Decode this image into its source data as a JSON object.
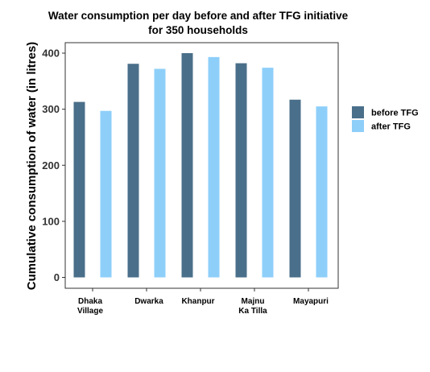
{
  "chart_data": {
    "type": "bar",
    "title_lines": [
      "Water consumption per day before and after TFG initiative",
      "for 350 households"
    ],
    "xlabel": "",
    "ylabel": "Cumulative consumption of water (in litres)",
    "ylim": [
      0,
      420
    ],
    "yticks": [
      0,
      100,
      200,
      300,
      400
    ],
    "grid": false,
    "legend_position": "right",
    "categories": [
      [
        "Dhaka",
        "Village"
      ],
      [
        "Dwarka"
      ],
      [
        "Khanpur"
      ],
      [
        "Majnu",
        "Ka Tilla"
      ],
      [
        "Mayapuri"
      ]
    ],
    "series": [
      {
        "name": "before TFG",
        "color": "#4a6f8a",
        "values": [
          313,
          381,
          400,
          382,
          317
        ]
      },
      {
        "name": "after TFG",
        "color": "#8ecffa",
        "values": [
          297,
          372,
          393,
          374,
          305
        ]
      }
    ]
  }
}
